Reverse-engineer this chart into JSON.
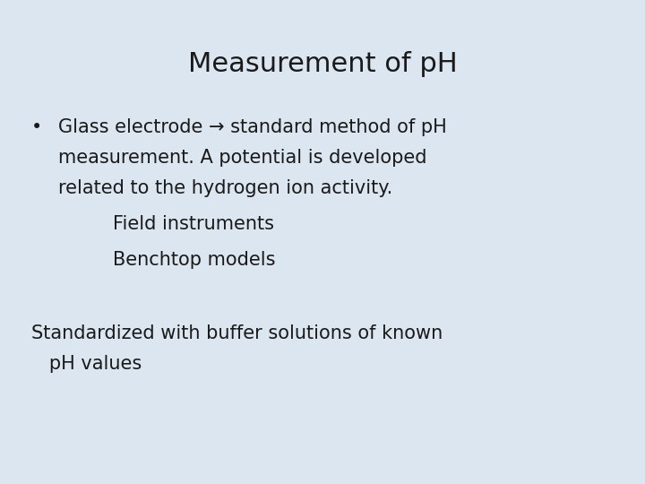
{
  "title": "Measurement of pH",
  "background_color": "#dce6f0",
  "title_fontsize": 22,
  "text_color": "#1a1a1a",
  "bullet_line1": "Glass electrode → standard method of pH",
  "bullet_line2": "measurement. A potential is developed",
  "bullet_line3": "related to the hydrogen ion activity.",
  "sub_item1": "Field instruments",
  "sub_item2": "Benchtop models",
  "bottom_text_line1": "Standardized with buffer solutions of known",
  "bottom_text_line2": "   pH values",
  "font_family": "DejaVu Sans",
  "body_fontsize": 15,
  "sub_fontsize": 15
}
